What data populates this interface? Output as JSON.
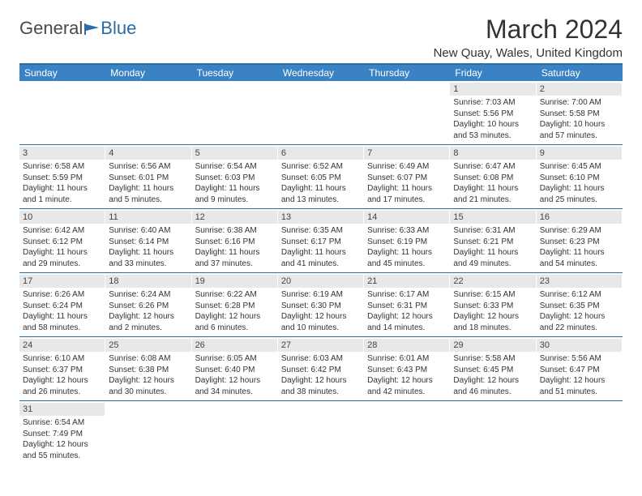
{
  "logo": {
    "general": "General",
    "blue": "Blue"
  },
  "title": "March 2024",
  "location": "New Quay, Wales, United Kingdom",
  "colors": {
    "header_bar": "#3b82c4",
    "header_border": "#2d6ca2",
    "daynum_bg": "#e8e8e8",
    "text": "#333333",
    "logo_gray": "#4a4a4a",
    "logo_accent": "#2d6ca2"
  },
  "day_names": [
    "Sunday",
    "Monday",
    "Tuesday",
    "Wednesday",
    "Thursday",
    "Friday",
    "Saturday"
  ],
  "weeks": [
    [
      {
        "day": "",
        "sunrise": "",
        "sunset": "",
        "daylight1": "",
        "daylight2": ""
      },
      {
        "day": "",
        "sunrise": "",
        "sunset": "",
        "daylight1": "",
        "daylight2": ""
      },
      {
        "day": "",
        "sunrise": "",
        "sunset": "",
        "daylight1": "",
        "daylight2": ""
      },
      {
        "day": "",
        "sunrise": "",
        "sunset": "",
        "daylight1": "",
        "daylight2": ""
      },
      {
        "day": "",
        "sunrise": "",
        "sunset": "",
        "daylight1": "",
        "daylight2": ""
      },
      {
        "day": "1",
        "sunrise": "Sunrise: 7:03 AM",
        "sunset": "Sunset: 5:56 PM",
        "daylight1": "Daylight: 10 hours",
        "daylight2": "and 53 minutes."
      },
      {
        "day": "2",
        "sunrise": "Sunrise: 7:00 AM",
        "sunset": "Sunset: 5:58 PM",
        "daylight1": "Daylight: 10 hours",
        "daylight2": "and 57 minutes."
      }
    ],
    [
      {
        "day": "3",
        "sunrise": "Sunrise: 6:58 AM",
        "sunset": "Sunset: 5:59 PM",
        "daylight1": "Daylight: 11 hours",
        "daylight2": "and 1 minute."
      },
      {
        "day": "4",
        "sunrise": "Sunrise: 6:56 AM",
        "sunset": "Sunset: 6:01 PM",
        "daylight1": "Daylight: 11 hours",
        "daylight2": "and 5 minutes."
      },
      {
        "day": "5",
        "sunrise": "Sunrise: 6:54 AM",
        "sunset": "Sunset: 6:03 PM",
        "daylight1": "Daylight: 11 hours",
        "daylight2": "and 9 minutes."
      },
      {
        "day": "6",
        "sunrise": "Sunrise: 6:52 AM",
        "sunset": "Sunset: 6:05 PM",
        "daylight1": "Daylight: 11 hours",
        "daylight2": "and 13 minutes."
      },
      {
        "day": "7",
        "sunrise": "Sunrise: 6:49 AM",
        "sunset": "Sunset: 6:07 PM",
        "daylight1": "Daylight: 11 hours",
        "daylight2": "and 17 minutes."
      },
      {
        "day": "8",
        "sunrise": "Sunrise: 6:47 AM",
        "sunset": "Sunset: 6:08 PM",
        "daylight1": "Daylight: 11 hours",
        "daylight2": "and 21 minutes."
      },
      {
        "day": "9",
        "sunrise": "Sunrise: 6:45 AM",
        "sunset": "Sunset: 6:10 PM",
        "daylight1": "Daylight: 11 hours",
        "daylight2": "and 25 minutes."
      }
    ],
    [
      {
        "day": "10",
        "sunrise": "Sunrise: 6:42 AM",
        "sunset": "Sunset: 6:12 PM",
        "daylight1": "Daylight: 11 hours",
        "daylight2": "and 29 minutes."
      },
      {
        "day": "11",
        "sunrise": "Sunrise: 6:40 AM",
        "sunset": "Sunset: 6:14 PM",
        "daylight1": "Daylight: 11 hours",
        "daylight2": "and 33 minutes."
      },
      {
        "day": "12",
        "sunrise": "Sunrise: 6:38 AM",
        "sunset": "Sunset: 6:16 PM",
        "daylight1": "Daylight: 11 hours",
        "daylight2": "and 37 minutes."
      },
      {
        "day": "13",
        "sunrise": "Sunrise: 6:35 AM",
        "sunset": "Sunset: 6:17 PM",
        "daylight1": "Daylight: 11 hours",
        "daylight2": "and 41 minutes."
      },
      {
        "day": "14",
        "sunrise": "Sunrise: 6:33 AM",
        "sunset": "Sunset: 6:19 PM",
        "daylight1": "Daylight: 11 hours",
        "daylight2": "and 45 minutes."
      },
      {
        "day": "15",
        "sunrise": "Sunrise: 6:31 AM",
        "sunset": "Sunset: 6:21 PM",
        "daylight1": "Daylight: 11 hours",
        "daylight2": "and 49 minutes."
      },
      {
        "day": "16",
        "sunrise": "Sunrise: 6:29 AM",
        "sunset": "Sunset: 6:23 PM",
        "daylight1": "Daylight: 11 hours",
        "daylight2": "and 54 minutes."
      }
    ],
    [
      {
        "day": "17",
        "sunrise": "Sunrise: 6:26 AM",
        "sunset": "Sunset: 6:24 PM",
        "daylight1": "Daylight: 11 hours",
        "daylight2": "and 58 minutes."
      },
      {
        "day": "18",
        "sunrise": "Sunrise: 6:24 AM",
        "sunset": "Sunset: 6:26 PM",
        "daylight1": "Daylight: 12 hours",
        "daylight2": "and 2 minutes."
      },
      {
        "day": "19",
        "sunrise": "Sunrise: 6:22 AM",
        "sunset": "Sunset: 6:28 PM",
        "daylight1": "Daylight: 12 hours",
        "daylight2": "and 6 minutes."
      },
      {
        "day": "20",
        "sunrise": "Sunrise: 6:19 AM",
        "sunset": "Sunset: 6:30 PM",
        "daylight1": "Daylight: 12 hours",
        "daylight2": "and 10 minutes."
      },
      {
        "day": "21",
        "sunrise": "Sunrise: 6:17 AM",
        "sunset": "Sunset: 6:31 PM",
        "daylight1": "Daylight: 12 hours",
        "daylight2": "and 14 minutes."
      },
      {
        "day": "22",
        "sunrise": "Sunrise: 6:15 AM",
        "sunset": "Sunset: 6:33 PM",
        "daylight1": "Daylight: 12 hours",
        "daylight2": "and 18 minutes."
      },
      {
        "day": "23",
        "sunrise": "Sunrise: 6:12 AM",
        "sunset": "Sunset: 6:35 PM",
        "daylight1": "Daylight: 12 hours",
        "daylight2": "and 22 minutes."
      }
    ],
    [
      {
        "day": "24",
        "sunrise": "Sunrise: 6:10 AM",
        "sunset": "Sunset: 6:37 PM",
        "daylight1": "Daylight: 12 hours",
        "daylight2": "and 26 minutes."
      },
      {
        "day": "25",
        "sunrise": "Sunrise: 6:08 AM",
        "sunset": "Sunset: 6:38 PM",
        "daylight1": "Daylight: 12 hours",
        "daylight2": "and 30 minutes."
      },
      {
        "day": "26",
        "sunrise": "Sunrise: 6:05 AM",
        "sunset": "Sunset: 6:40 PM",
        "daylight1": "Daylight: 12 hours",
        "daylight2": "and 34 minutes."
      },
      {
        "day": "27",
        "sunrise": "Sunrise: 6:03 AM",
        "sunset": "Sunset: 6:42 PM",
        "daylight1": "Daylight: 12 hours",
        "daylight2": "and 38 minutes."
      },
      {
        "day": "28",
        "sunrise": "Sunrise: 6:01 AM",
        "sunset": "Sunset: 6:43 PM",
        "daylight1": "Daylight: 12 hours",
        "daylight2": "and 42 minutes."
      },
      {
        "day": "29",
        "sunrise": "Sunrise: 5:58 AM",
        "sunset": "Sunset: 6:45 PM",
        "daylight1": "Daylight: 12 hours",
        "daylight2": "and 46 minutes."
      },
      {
        "day": "30",
        "sunrise": "Sunrise: 5:56 AM",
        "sunset": "Sunset: 6:47 PM",
        "daylight1": "Daylight: 12 hours",
        "daylight2": "and 51 minutes."
      }
    ],
    [
      {
        "day": "31",
        "sunrise": "Sunrise: 6:54 AM",
        "sunset": "Sunset: 7:49 PM",
        "daylight1": "Daylight: 12 hours",
        "daylight2": "and 55 minutes."
      },
      {
        "day": "",
        "sunrise": "",
        "sunset": "",
        "daylight1": "",
        "daylight2": ""
      },
      {
        "day": "",
        "sunrise": "",
        "sunset": "",
        "daylight1": "",
        "daylight2": ""
      },
      {
        "day": "",
        "sunrise": "",
        "sunset": "",
        "daylight1": "",
        "daylight2": ""
      },
      {
        "day": "",
        "sunrise": "",
        "sunset": "",
        "daylight1": "",
        "daylight2": ""
      },
      {
        "day": "",
        "sunrise": "",
        "sunset": "",
        "daylight1": "",
        "daylight2": ""
      },
      {
        "day": "",
        "sunrise": "",
        "sunset": "",
        "daylight1": "",
        "daylight2": ""
      }
    ]
  ]
}
